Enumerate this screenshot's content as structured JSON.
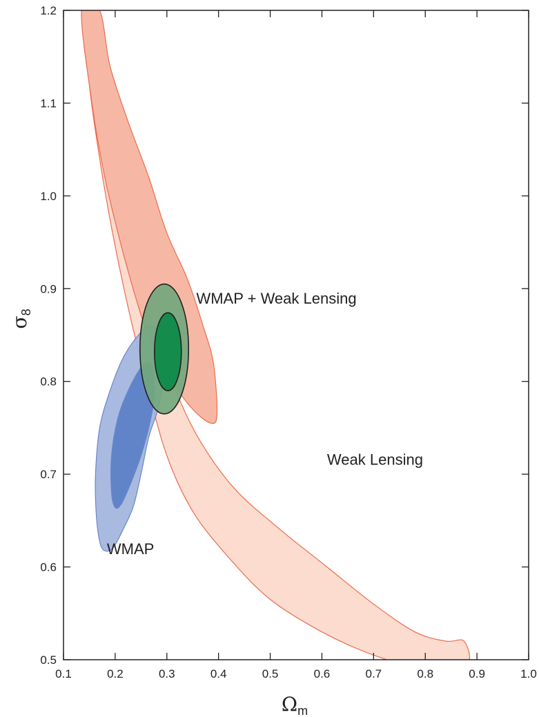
{
  "chart_data": {
    "type": "contour",
    "xlabel": {
      "symbol": "Ω",
      "subscript": "m"
    },
    "ylabel": {
      "symbol": "σ",
      "subscript": "8"
    },
    "xlim": [
      0.1,
      1.0
    ],
    "ylim": [
      0.5,
      1.2
    ],
    "xticks": [
      "0.1",
      "0.2",
      "0.3",
      "0.4",
      "0.5",
      "0.6",
      "0.7",
      "0.8",
      "0.9",
      "1.0"
    ],
    "yticks": [
      "0.5",
      "0.6",
      "0.7",
      "0.8",
      "0.9",
      "1.0",
      "1.1",
      "1.2"
    ],
    "xtick_values": [
      0.1,
      0.2,
      0.3,
      0.4,
      0.5,
      0.6,
      0.7,
      0.8,
      0.9,
      1.0
    ],
    "ytick_values": [
      0.5,
      0.6,
      0.7,
      0.8,
      0.9,
      1.0,
      1.1,
      1.2
    ],
    "grid": false,
    "series": [
      {
        "name": "Weak Lensing",
        "label_position": [
          0.61,
          0.71
        ],
        "colors": {
          "outer": "#fbdccf",
          "inner": "#f6b8a4",
          "stroke": "#ec6a4e"
        },
        "contours": [
          {
            "level": "outer",
            "points": [
              [
                0.16,
                1.2
              ],
              [
                0.185,
                1.1
              ],
              [
                0.21,
                1.02
              ],
              [
                0.24,
                0.94
              ],
              [
                0.275,
                0.86
              ],
              [
                0.31,
                0.8
              ],
              [
                0.36,
                0.74
              ],
              [
                0.43,
                0.685
              ],
              [
                0.52,
                0.64
              ],
              [
                0.61,
                0.6
              ],
              [
                0.7,
                0.56
              ],
              [
                0.78,
                0.53
              ],
              [
                0.84,
                0.52
              ],
              [
                0.875,
                0.52
              ],
              [
                0.88,
                0.495
              ],
              [
                0.8,
                0.49
              ],
              [
                0.7,
                0.505
              ],
              [
                0.6,
                0.53
              ],
              [
                0.5,
                0.565
              ],
              [
                0.42,
                0.61
              ],
              [
                0.35,
                0.66
              ],
              [
                0.3,
                0.72
              ],
              [
                0.26,
                0.8
              ],
              [
                0.225,
                0.88
              ],
              [
                0.195,
                0.96
              ],
              [
                0.17,
                1.04
              ],
              [
                0.15,
                1.12
              ],
              [
                0.14,
                1.2
              ]
            ]
          },
          {
            "level": "inner",
            "points": [
              [
                0.135,
                1.2
              ],
              [
                0.155,
                1.1
              ],
              [
                0.18,
                1.02
              ],
              [
                0.21,
                0.95
              ],
              [
                0.24,
                0.89
              ],
              [
                0.27,
                0.84
              ],
              [
                0.31,
                0.8
              ],
              [
                0.35,
                0.77
              ],
              [
                0.385,
                0.755
              ],
              [
                0.397,
                0.765
              ],
              [
                0.39,
                0.82
              ],
              [
                0.37,
                0.86
              ],
              [
                0.34,
                0.91
              ],
              [
                0.3,
                0.96
              ],
              [
                0.265,
                1.02
              ],
              [
                0.225,
                1.08
              ],
              [
                0.19,
                1.14
              ],
              [
                0.17,
                1.2
              ]
            ]
          }
        ]
      },
      {
        "name": "WMAP",
        "label_position": [
          0.184,
          0.614
        ],
        "colors": {
          "outer": "#a2b4de",
          "inner": "#5a7fc4",
          "stroke": "#6a86c9"
        },
        "contours": [
          {
            "level": "outer",
            "points": [
              [
                0.178,
                0.618
              ],
              [
                0.169,
                0.63
              ],
              [
                0.163,
                0.66
              ],
              [
                0.162,
                0.7
              ],
              [
                0.17,
                0.75
              ],
              [
                0.19,
                0.79
              ],
              [
                0.215,
                0.825
              ],
              [
                0.245,
                0.85
              ],
              [
                0.268,
                0.86
              ],
              [
                0.285,
                0.85
              ],
              [
                0.293,
                0.82
              ],
              [
                0.29,
                0.79
              ],
              [
                0.28,
                0.765
              ],
              [
                0.265,
                0.74
              ],
              [
                0.25,
                0.7
              ],
              [
                0.235,
                0.665
              ],
              [
                0.215,
                0.64
              ],
              [
                0.195,
                0.62
              ]
            ]
          },
          {
            "level": "inner",
            "points": [
              [
                0.2,
                0.664
              ],
              [
                0.193,
                0.68
              ],
              [
                0.193,
                0.72
              ],
              [
                0.205,
                0.76
              ],
              [
                0.225,
                0.79
              ],
              [
                0.25,
                0.815
              ],
              [
                0.268,
                0.82
              ],
              [
                0.275,
                0.81
              ],
              [
                0.275,
                0.78
              ],
              [
                0.265,
                0.75
              ],
              [
                0.25,
                0.72
              ],
              [
                0.23,
                0.69
              ],
              [
                0.212,
                0.668
              ]
            ]
          }
        ]
      },
      {
        "name": "WMAP + Weak Lensing",
        "label_position": [
          0.357,
          0.884
        ],
        "colors": {
          "outer": "#73a77d",
          "inner": "#0f8a48",
          "stroke": "#231f20"
        },
        "contours": [
          {
            "level": "outer",
            "ellipse": {
              "cx": 0.295,
              "cy": 0.835,
              "rx": 0.047,
              "ry": 0.07
            }
          },
          {
            "level": "inner",
            "ellipse": {
              "cx": 0.302,
              "cy": 0.832,
              "rx": 0.026,
              "ry": 0.042
            }
          }
        ]
      }
    ]
  }
}
